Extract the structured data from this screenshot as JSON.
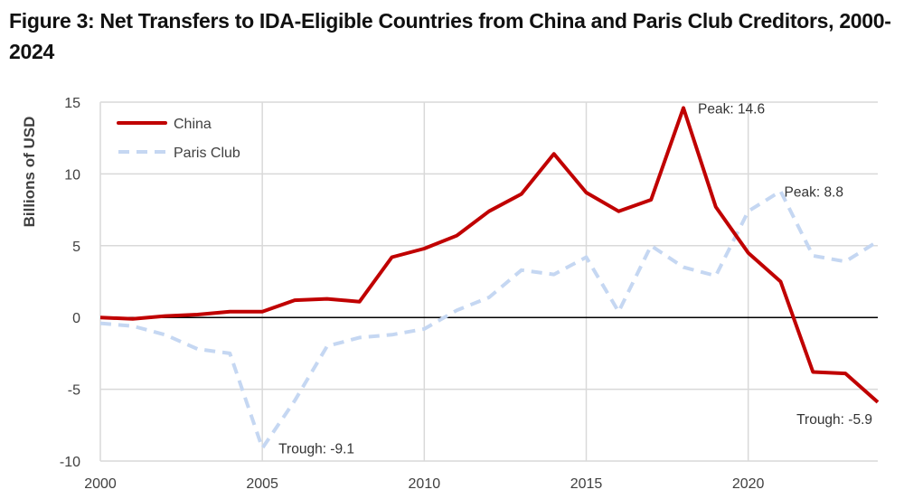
{
  "chart_data": {
    "type": "line",
    "title": "Figure 3: Net Transfers to IDA-Eligible Countries from China and Paris Club Creditors, 2000-2024",
    "xlabel": "",
    "ylabel": "Billions of USD",
    "xlim": [
      2000,
      2024
    ],
    "ylim": [
      -10,
      15
    ],
    "x_ticks": [
      "2000",
      "2005",
      "2010",
      "2015",
      "2020"
    ],
    "y_ticks": [
      "15",
      "10",
      "5",
      "0",
      "-5",
      "-10"
    ],
    "grid": true,
    "legend_position": "top-left",
    "x": [
      2000,
      2001,
      2002,
      2003,
      2004,
      2005,
      2006,
      2007,
      2008,
      2009,
      2010,
      2011,
      2012,
      2013,
      2014,
      2015,
      2016,
      2017,
      2018,
      2019,
      2020,
      2021,
      2022,
      2023,
      2024
    ],
    "series": [
      {
        "name": "China",
        "color": "#c00000",
        "style": "solid",
        "values": [
          0.0,
          -0.1,
          0.1,
          0.2,
          0.4,
          0.4,
          1.2,
          1.3,
          1.1,
          4.2,
          4.8,
          5.7,
          7.4,
          8.6,
          11.4,
          8.7,
          7.4,
          8.2,
          14.6,
          7.7,
          4.5,
          2.5,
          -3.8,
          -3.9,
          -5.9
        ]
      },
      {
        "name": "Paris Club",
        "color": "#c5d7f2",
        "style": "dashed",
        "values": [
          -0.4,
          -0.6,
          -1.2,
          -2.2,
          -2.5,
          -9.1,
          -5.8,
          -2.0,
          -1.4,
          -1.2,
          -0.8,
          0.5,
          1.4,
          3.3,
          3.0,
          4.2,
          0.4,
          5.0,
          3.5,
          2.9,
          7.4,
          8.8,
          4.3,
          3.9,
          5.3
        ]
      }
    ],
    "annotations": [
      {
        "text": "Peak: 14.6",
        "series": "China",
        "x": 2018,
        "y": 14.6
      },
      {
        "text": "Trough: -5.9",
        "series": "China",
        "x": 2024,
        "y": -5.9
      },
      {
        "text": "Peak: 8.8",
        "series": "Paris Club",
        "x": 2021,
        "y": 8.8
      },
      {
        "text": "Trough: -9.1",
        "series": "Paris Club",
        "x": 2005,
        "y": -9.1
      }
    ]
  }
}
